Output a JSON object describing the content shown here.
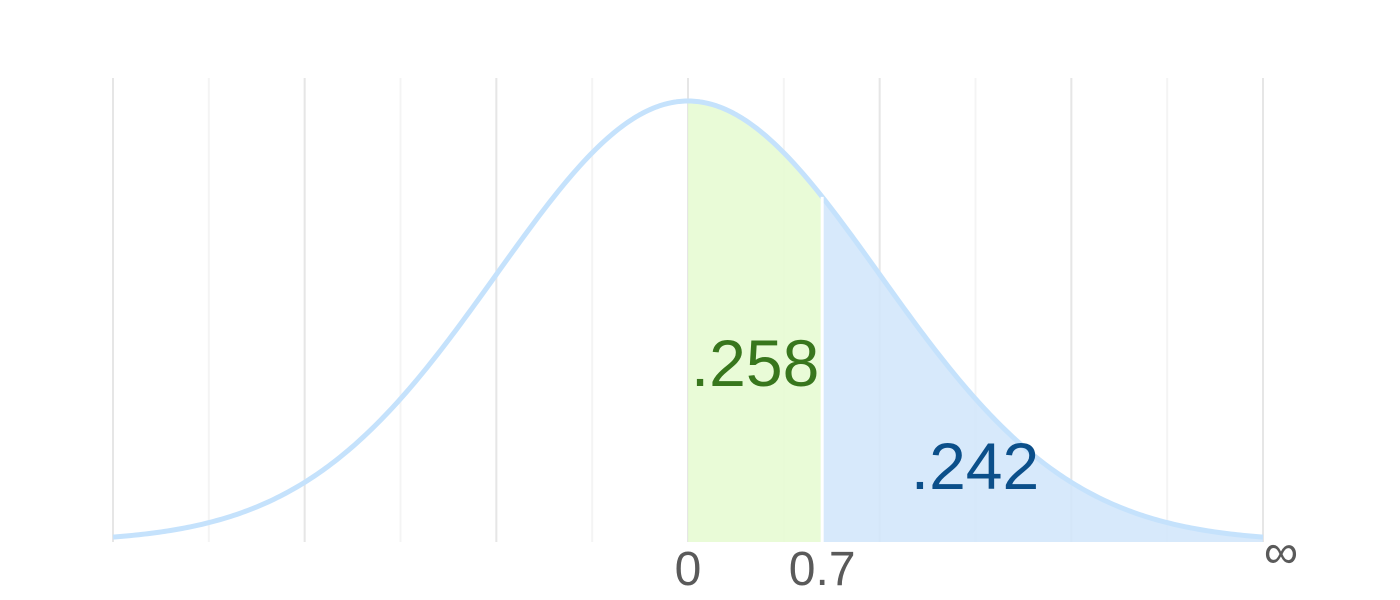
{
  "chart_data": {
    "type": "area",
    "distribution": "standard normal",
    "x_range": [
      -3,
      3
    ],
    "gridlines_x": [
      -3,
      -2.5,
      -2,
      -1.5,
      -1,
      -0.5,
      0,
      0.5,
      1,
      1.5,
      2,
      2.5,
      3
    ],
    "regions": [
      {
        "from": 0,
        "to": 0.7,
        "value": 0.258,
        "label": ".258",
        "fill": "#e6fad2",
        "label_color": "#38761d"
      },
      {
        "from": 0.7,
        "to": "inf",
        "value": 0.242,
        "label": ".242",
        "fill": "#d2e6fa",
        "label_color": "#0b4f8a"
      }
    ],
    "ticks": [
      {
        "x": 0,
        "label": "0"
      },
      {
        "x": 0.7,
        "label": "0.7"
      },
      {
        "x": 3,
        "label": "∞"
      }
    ],
    "curve_color": "#c5e2fc",
    "grid": true
  }
}
